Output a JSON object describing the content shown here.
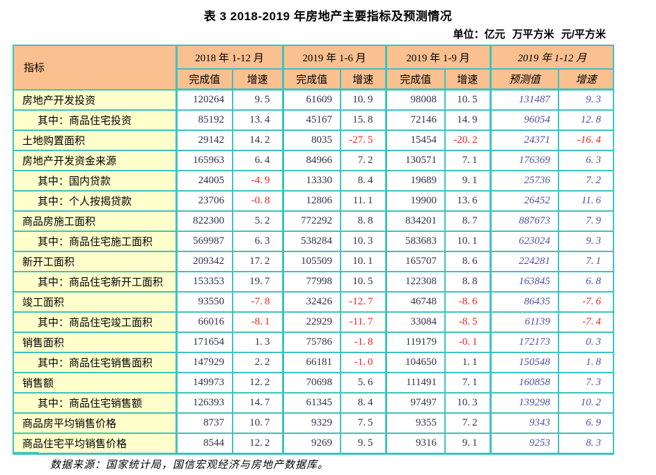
{
  "page": {
    "title": "表 3 2018-2019 年房地产主要指标及预测情况",
    "unit_note": "单位：亿元 万平方米 元/平方米",
    "source_note": "数据来源：国家统计局，国信宏观经济与房地产数据库。"
  },
  "table": {
    "indicator_header": "指标",
    "groups": [
      {
        "label": "2018 年 1-12 月",
        "sub": [
          "完成值",
          "增速"
        ]
      },
      {
        "label": "2019 年 1-6 月",
        "sub": [
          "完成值",
          "增速"
        ]
      },
      {
        "label": "2019 年 1-9 月",
        "sub": [
          "完成值",
          "增速"
        ]
      },
      {
        "label": "2019 年 1-12 月",
        "sub": [
          "预测值",
          "增速"
        ],
        "style": "forecast-italic"
      }
    ],
    "rows": [
      {
        "label": "房地产开发投资",
        "indent": false,
        "values": [
          "120264",
          "9.5",
          "61609",
          "10.9",
          "98008",
          "10.5",
          "131487",
          "9.3"
        ]
      },
      {
        "label": "其中：商品住宅投资",
        "indent": true,
        "values": [
          "85192",
          "13.4",
          "45167",
          "15.8",
          "72146",
          "14.9",
          "96054",
          "12.8"
        ]
      },
      {
        "label": "土地购置面积",
        "indent": false,
        "values": [
          "29142",
          "14.2",
          "8035",
          "-27.5",
          "15454",
          "-20.2",
          "24371",
          "-16.4"
        ]
      },
      {
        "label": "房地产开发资金来源",
        "indent": false,
        "values": [
          "165963",
          "6.4",
          "84966",
          "7.2",
          "130571",
          "7.1",
          "176369",
          "6.3"
        ]
      },
      {
        "label": "其中：国内贷款",
        "indent": true,
        "values": [
          "24005",
          "-4.9",
          "13330",
          "8.4",
          "19689",
          "9.1",
          "25736",
          "7.2"
        ]
      },
      {
        "label": "其中：个人按揭贷款",
        "indent": true,
        "values": [
          "23706",
          "-0.8",
          "12806",
          "11.1",
          "19900",
          "13.6",
          "26452",
          "11.6"
        ]
      },
      {
        "label": "商品房施工面积",
        "indent": false,
        "values": [
          "822300",
          "5.2",
          "772292",
          "8.8",
          "834201",
          "8.7",
          "887673",
          "7.9"
        ]
      },
      {
        "label": "其中：商品住宅施工面积",
        "indent": true,
        "values": [
          "569987",
          "6.3",
          "538284",
          "10.3",
          "583683",
          "10.1",
          "623024",
          "9.3"
        ]
      },
      {
        "label": "新开工面积",
        "indent": false,
        "values": [
          "209342",
          "17.2",
          "105509",
          "10.1",
          "165707",
          "8.6",
          "224281",
          "7.1"
        ]
      },
      {
        "label": "其中：商品住宅新开工面积",
        "indent": true,
        "values": [
          "153353",
          "19.7",
          "77998",
          "10.5",
          "122308",
          "8.8",
          "163845",
          "6.8"
        ]
      },
      {
        "label": "竣工面积",
        "indent": false,
        "values": [
          "93550",
          "-7.8",
          "32426",
          "-12.7",
          "46748",
          "-8.6",
          "86435",
          "-7.6"
        ]
      },
      {
        "label": "其中：商品住宅竣工面积",
        "indent": true,
        "values": [
          "66016",
          "-8.1",
          "22929",
          "-11.7",
          "33084",
          "-8.5",
          "61139",
          "-7.4"
        ]
      },
      {
        "label": "销售面积",
        "indent": false,
        "values": [
          "171654",
          "1.3",
          "75786",
          "-1.8",
          "119179",
          "-0.1",
          "172173",
          "0.3"
        ]
      },
      {
        "label": "其中：商品住宅销售面积",
        "indent": true,
        "values": [
          "147929",
          "2.2",
          "66181",
          "-1.0",
          "104650",
          "1.1",
          "150548",
          "1.8"
        ]
      },
      {
        "label": "销售额",
        "indent": false,
        "values": [
          "149973",
          "12.2",
          "70698",
          "5.6",
          "111491",
          "7.1",
          "160858",
          "7.3"
        ]
      },
      {
        "label": "其中：商品住宅销售额",
        "indent": true,
        "values": [
          "126393",
          "14.7",
          "61345",
          "8.4",
          "97497",
          "10.3",
          "139298",
          "10.2"
        ]
      },
      {
        "label": "商品房平均销售价格",
        "indent": false,
        "values": [
          "8737",
          "10.7",
          "9329",
          "7.5",
          "9355",
          "7.2",
          "9343",
          "6.9"
        ]
      },
      {
        "label": "商品住宅平均销售价格",
        "indent": false,
        "values": [
          "8544",
          "12.2",
          "9269",
          "9.5",
          "9316",
          "9.1",
          "9253",
          "8.3"
        ]
      }
    ]
  },
  "colors": {
    "border_teal": "#3cc3c0",
    "header_bg": "#fac090",
    "label_col_bg": "#ffffcc",
    "value_text": "#31314e",
    "negative_red": "#e8251d",
    "forecast_blue": "#5050a6"
  }
}
